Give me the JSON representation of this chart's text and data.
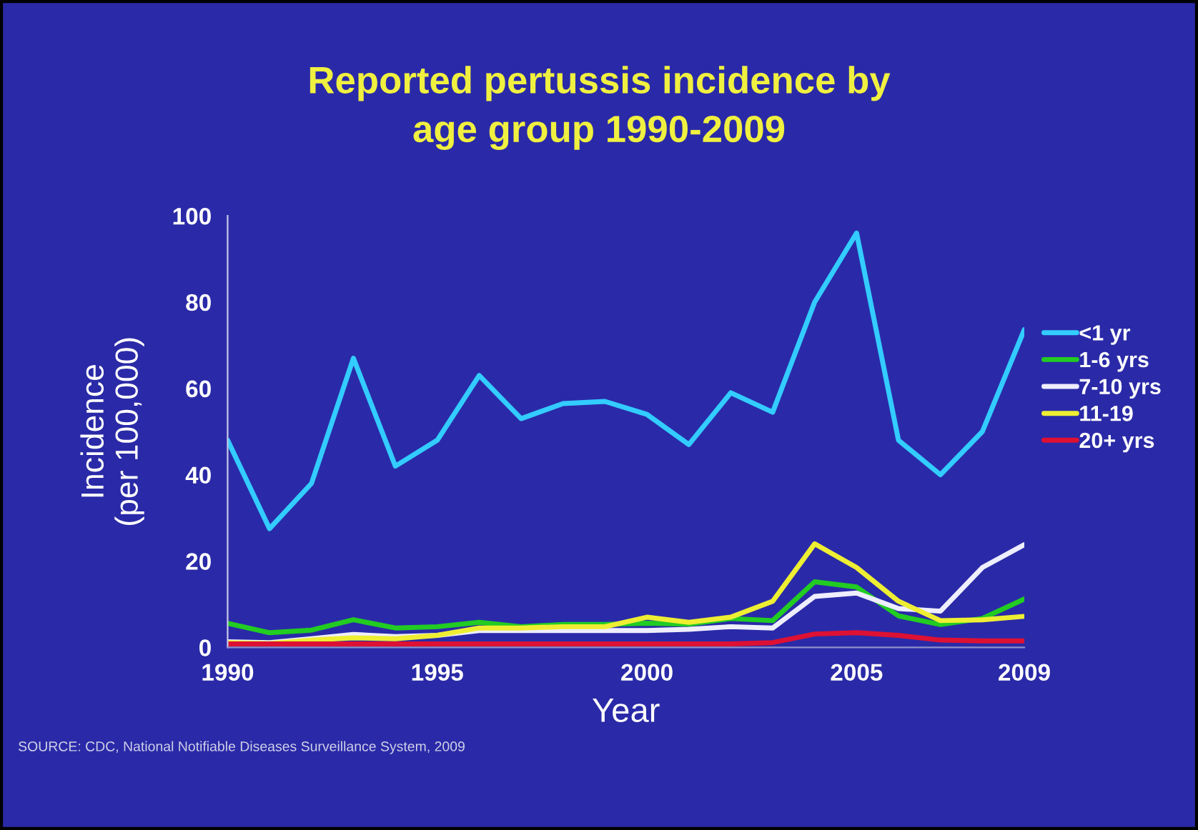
{
  "chart_data": {
    "type": "line",
    "title": "Reported pertussis incidence by\nage group 1990-2009",
    "xlabel": "Year",
    "ylabel": "Incidence\n(per 100,000)",
    "x": [
      1990,
      1991,
      1992,
      1993,
      1994,
      1995,
      1996,
      1997,
      1998,
      1999,
      2000,
      2001,
      2002,
      2003,
      2004,
      2005,
      2006,
      2007,
      2008,
      2009
    ],
    "series": [
      {
        "name": "<1 yr",
        "color": "#33ccff",
        "values": [
          48,
          27.5,
          38,
          67,
          42,
          48,
          63,
          53,
          56.5,
          57,
          54,
          47,
          59,
          54.5,
          80,
          96,
          48,
          40,
          50,
          73.6
        ]
      },
      {
        "name": "1-6 yrs",
        "color": "#22cc22",
        "values": [
          5.6,
          3.4,
          4,
          6.4,
          4.5,
          4.8,
          5.8,
          4.8,
          5.3,
          5.3,
          5.6,
          5.4,
          6.7,
          6.2,
          15.2,
          14,
          7.3,
          5.3,
          6.7,
          11.2
        ]
      },
      {
        "name": "7-10 yrs",
        "color": "#eeeeff",
        "values": [
          1.3,
          1.1,
          2,
          3,
          2.5,
          2.8,
          3.9,
          3.9,
          3.9,
          3.9,
          3.9,
          4.2,
          4.8,
          4.5,
          11.8,
          12.6,
          9,
          8.4,
          18.5,
          23.8
        ]
      },
      {
        "name": "11-19",
        "color": "#eeee33",
        "values": [
          1.1,
          0.9,
          1.7,
          2.2,
          2,
          2.8,
          4.5,
          4.5,
          4.8,
          4.8,
          7,
          5.8,
          7,
          10.7,
          24,
          18.5,
          10.7,
          6.2,
          6.4,
          7.2
        ]
      },
      {
        "name": "20+ yrs",
        "color": "#dd1133",
        "values": [
          0.8,
          0.8,
          0.8,
          0.8,
          0.8,
          0.8,
          0.8,
          0.8,
          0.8,
          0.8,
          0.8,
          0.8,
          0.8,
          1.1,
          3.1,
          3.4,
          2.8,
          1.7,
          1.5,
          1.5
        ]
      }
    ],
    "xlim": [
      1990,
      2009
    ],
    "ylim": [
      0,
      100
    ],
    "xticks": [
      1990,
      1995,
      2000,
      2005,
      2009
    ],
    "yticks": [
      0,
      20,
      40,
      60,
      80,
      100
    ],
    "grid": false,
    "legend": "right",
    "marker": "none",
    "line_style": "solid",
    "annotations": [
      "SOURCE: CDC, National Notifiable Diseases Surveillance System, 2009"
    ]
  }
}
